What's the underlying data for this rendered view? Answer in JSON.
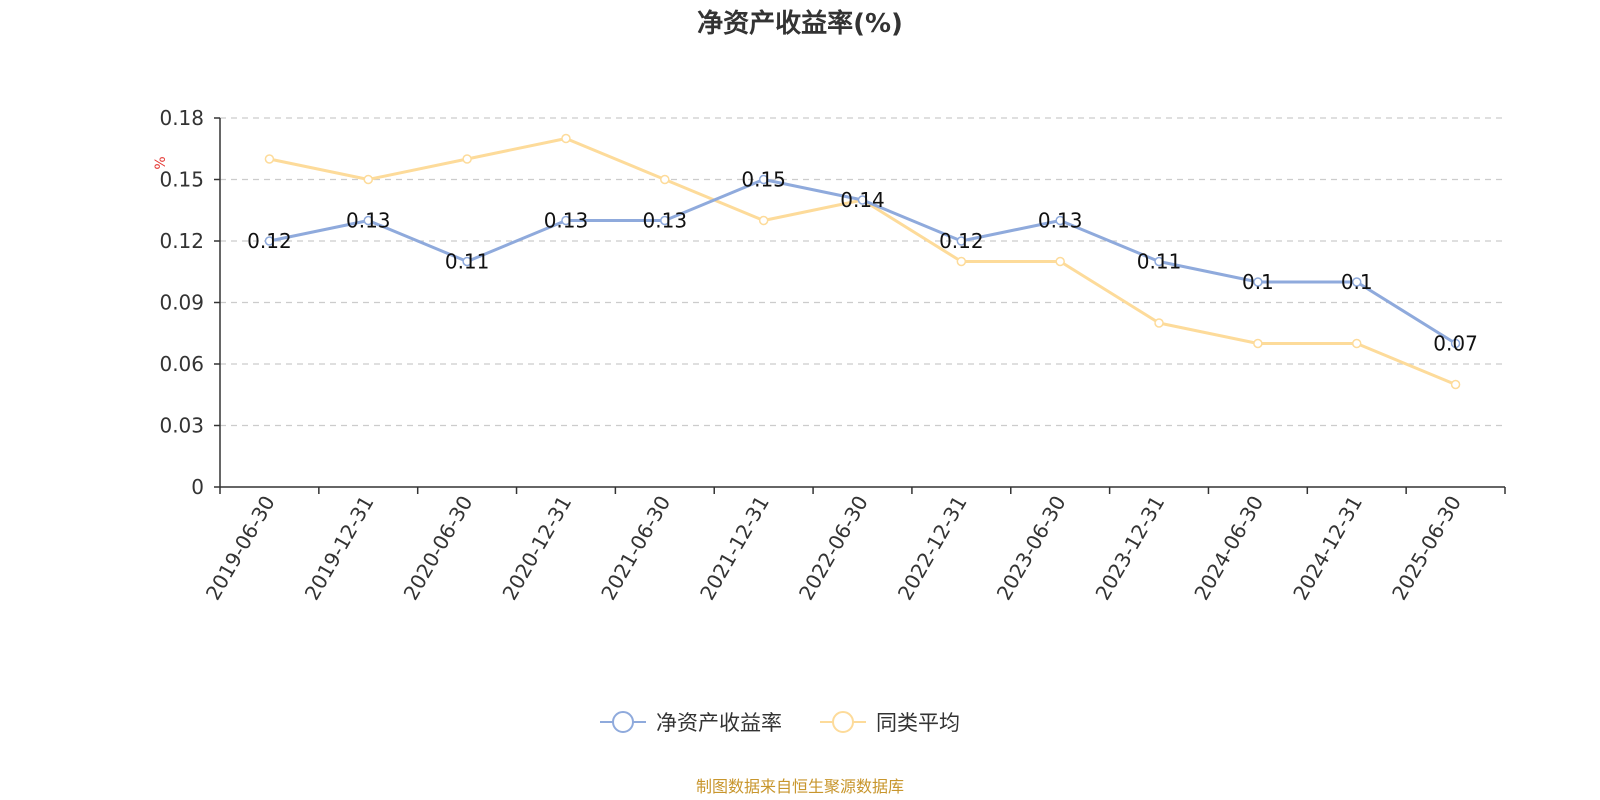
{
  "chart_data": {
    "type": "line",
    "title": "净资产收益率(%)",
    "ylabel": "%",
    "ylim": [
      0,
      0.18
    ],
    "yticks": [
      "0",
      "0.03",
      "0.06",
      "0.09",
      "0.12",
      "0.15",
      "0.18"
    ],
    "categories": [
      "2019-06-30",
      "2019-12-31",
      "2020-06-30",
      "2020-12-31",
      "2021-06-30",
      "2021-12-31",
      "2022-06-30",
      "2022-12-31",
      "2023-06-30",
      "2023-12-31",
      "2024-06-30",
      "2024-12-31",
      "2025-06-30"
    ],
    "series": [
      {
        "name": "净资产收益率",
        "color": "#8faadc",
        "values": [
          0.12,
          0.13,
          0.11,
          0.13,
          0.13,
          0.15,
          0.14,
          0.12,
          0.13,
          0.11,
          0.1,
          0.1,
          0.07
        ],
        "labels": [
          "0.12",
          "0.13",
          "0.11",
          "0.13",
          "0.13",
          "0.15",
          "0.14",
          "0.12",
          "0.13",
          "0.11",
          "0.1",
          "0.1",
          "0.07"
        ]
      },
      {
        "name": "同类平均",
        "color": "#fddb9a",
        "values": [
          0.16,
          0.15,
          0.16,
          0.17,
          0.15,
          0.13,
          0.14,
          0.11,
          0.11,
          0.08,
          0.07,
          0.07,
          0.05
        ]
      }
    ],
    "grid": true,
    "legend": "bottom-center",
    "source": "制图数据来自恒生聚源数据库"
  }
}
